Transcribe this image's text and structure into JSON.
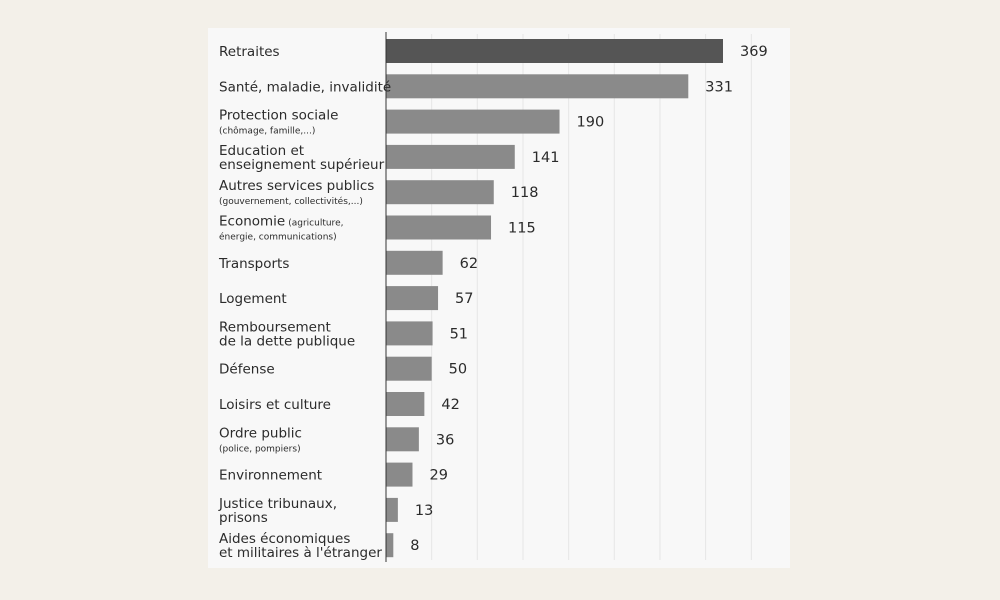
{
  "chart_data": {
    "type": "bar",
    "orientation": "horizontal",
    "grid": true,
    "xlim": [
      0,
      400
    ],
    "colors": {
      "highlight": "#555555",
      "bar": "#8a8a8a",
      "axis": "#333333",
      "grid": "#e6e6e6"
    },
    "categories": [
      {
        "lines": [
          {
            "main": "Retraites"
          }
        ]
      },
      {
        "lines": [
          {
            "main": "Santé, maladie, invalidité"
          }
        ]
      },
      {
        "lines": [
          {
            "main": "Protection sociale"
          },
          {
            "sub": "(chômage, famille,...)"
          }
        ]
      },
      {
        "lines": [
          {
            "main": "Education et"
          },
          {
            "main": "enseignement supérieur"
          }
        ]
      },
      {
        "lines": [
          {
            "main": "Autres services publics"
          },
          {
            "sub": "(gouvernement, collectivités,...)"
          }
        ]
      },
      {
        "lines": [
          {
            "main": "Economie",
            "sub": "(agriculture,"
          },
          {
            "sub": "énergie, communications)"
          }
        ]
      },
      {
        "lines": [
          {
            "main": "Transports"
          }
        ]
      },
      {
        "lines": [
          {
            "main": "Logement"
          }
        ]
      },
      {
        "lines": [
          {
            "main": "Remboursement"
          },
          {
            "main": "de la dette publique"
          }
        ]
      },
      {
        "lines": [
          {
            "main": "Défense"
          }
        ]
      },
      {
        "lines": [
          {
            "main": "Loisirs et culture"
          }
        ]
      },
      {
        "lines": [
          {
            "main": "Ordre public"
          },
          {
            "sub": "(police, pompiers)"
          }
        ]
      },
      {
        "lines": [
          {
            "main": "Environnement"
          }
        ]
      },
      {
        "lines": [
          {
            "main": "Justice tribunaux,"
          },
          {
            "main": "prisons"
          }
        ]
      },
      {
        "lines": [
          {
            "main": "Aides économiques"
          },
          {
            "main": "et militaires à l'étranger"
          }
        ]
      }
    ],
    "values": [
      369,
      331,
      190,
      141,
      118,
      115,
      62,
      57,
      51,
      50,
      42,
      36,
      29,
      13,
      8
    ],
    "highlight_index": 0
  }
}
